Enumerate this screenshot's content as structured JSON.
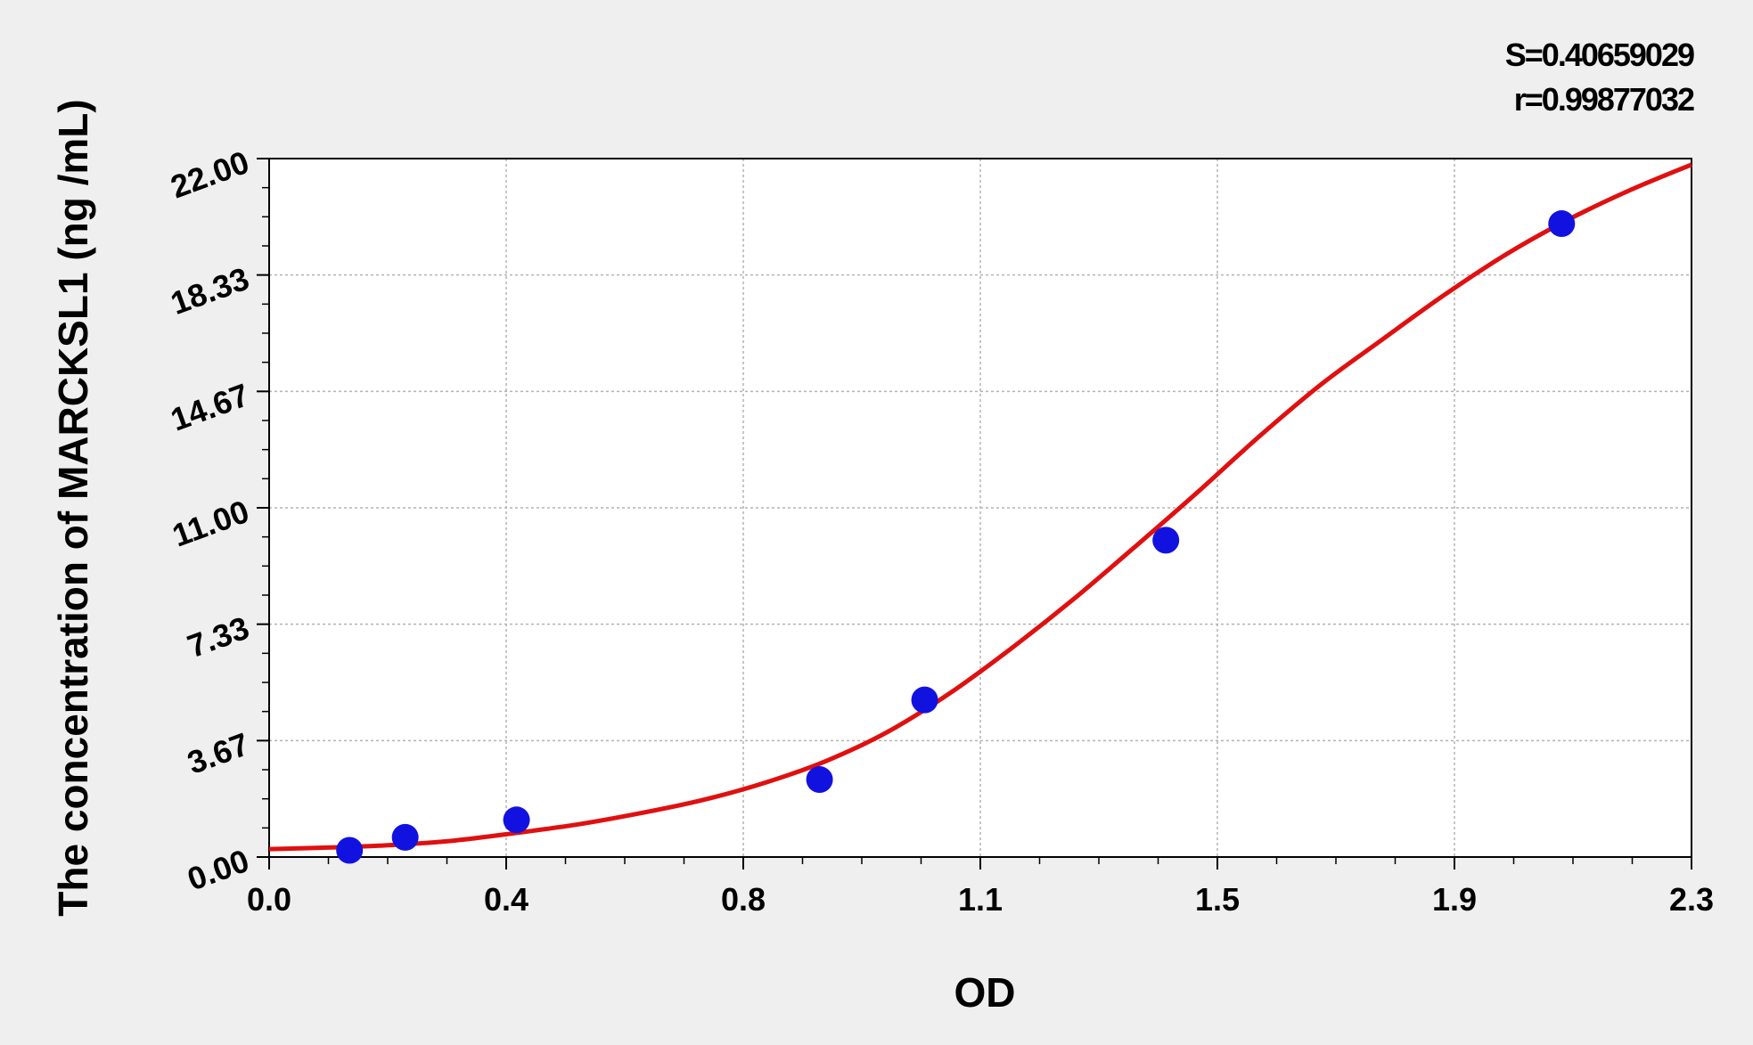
{
  "chart_data": {
    "type": "scatter",
    "xlabel": "OD",
    "ylabel": "The concentration of MARCKSL1 (ng /mL)",
    "xlim": [
      0.0,
      2.3
    ],
    "ylim": [
      0.0,
      22.0
    ],
    "x_ticks": [
      "0.0",
      "0.4",
      "0.8",
      "1.1",
      "1.5",
      "1.9",
      "2.3"
    ],
    "y_ticks": [
      "0.00",
      "3.67",
      "7.33",
      "11.00",
      "14.67",
      "18.33",
      "22.00"
    ],
    "grid": true,
    "points": {
      "x": [
        0.13,
        0.22,
        0.4,
        0.89,
        1.06,
        1.45,
        2.09
      ],
      "y": [
        0.21,
        0.62,
        1.17,
        2.44,
        4.95,
        9.98,
        19.95
      ]
    },
    "fit_curve": {
      "x": [
        0.0,
        0.1,
        0.2,
        0.3,
        0.4,
        0.5,
        0.6,
        0.7,
        0.8,
        0.9,
        1.0,
        1.1,
        1.2,
        1.3,
        1.4,
        1.5,
        1.6,
        1.7,
        1.8,
        1.9,
        2.0,
        2.1,
        2.2,
        2.3
      ],
      "y": [
        0.25,
        0.3,
        0.38,
        0.52,
        0.76,
        1.03,
        1.38,
        1.79,
        2.33,
        3.02,
        3.94,
        5.15,
        6.57,
        8.11,
        9.77,
        11.47,
        13.23,
        14.87,
        16.3,
        17.7,
        18.98,
        20.07,
        21.0,
        21.81
      ]
    },
    "statistics": [
      "S=0.40659029",
      "r=0.99877032"
    ],
    "colors": {
      "points": "#1212e0",
      "curve": "#e01010",
      "plot_background": "#ffffff",
      "page_background": "#efefef",
      "grid": "#b3b3b3"
    }
  }
}
